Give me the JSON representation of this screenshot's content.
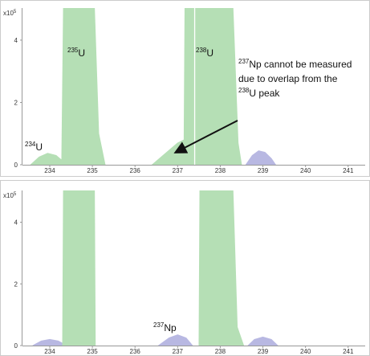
{
  "chart_data": [
    {
      "type": "area",
      "y_unit": {
        "base": "x10",
        "exp": "5"
      },
      "xlim": [
        233.36,
        241.4
      ],
      "xticks": [
        234,
        235,
        236,
        237,
        238,
        239,
        240,
        241
      ],
      "ylim": [
        0,
        5.03
      ],
      "yticks": [
        0,
        2,
        4
      ],
      "grid": false,
      "series": [
        {
          "color": "#b5dfb5",
          "x": [
            233.55,
            233.75,
            233.95,
            234.15,
            234.28,
            234.32,
            235.05,
            235.15,
            235.3
          ],
          "values": [
            0,
            0.25,
            0.37,
            0.3,
            0.15,
            5.03,
            5.03,
            1.0,
            0
          ]
        },
        {
          "color": "#b5dfb5",
          "x": [
            236.4,
            236.7,
            237.0,
            237.15,
            237.17,
            237.38,
            237.38
          ],
          "values": [
            0,
            0.35,
            0.7,
            0.8,
            5.03,
            5.03,
            0.8
          ]
        },
        {
          "color": "#b5dfb5",
          "x": [
            237.42,
            237.42,
            238.3,
            238.42,
            238.5
          ],
          "values": [
            0.8,
            5.03,
            5.03,
            0.7,
            0
          ]
        },
        {
          "color": "#b8b8e2",
          "x": [
            238.6,
            238.75,
            238.9,
            239.05,
            239.2,
            239.3
          ],
          "values": [
            0,
            0.3,
            0.45,
            0.4,
            0.2,
            0
          ]
        }
      ],
      "annotations": [
        {
          "sup": "235",
          "text": "U"
        },
        {
          "sup": "238",
          "text": "U"
        },
        {
          "sup": "234",
          "text": "U"
        },
        {
          "lines": [
            {
              "sup": "237",
              "text": "Np cannot be measured"
            },
            {
              "text": "due to overlap from the"
            },
            {
              "sup": "238",
              "text": "U peak"
            }
          ]
        }
      ]
    },
    {
      "type": "area",
      "y_unit": {
        "base": "x10",
        "exp": "5"
      },
      "xlim": [
        233.36,
        241.4
      ],
      "xticks": [
        234,
        235,
        236,
        237,
        238,
        239,
        240,
        241
      ],
      "ylim": [
        0,
        5.03
      ],
      "yticks": [
        0,
        2,
        4
      ],
      "grid": false,
      "series": [
        {
          "color": "#b8b8e2",
          "x": [
            233.6,
            233.8,
            234.0,
            234.2,
            234.4
          ],
          "values": [
            0,
            0.15,
            0.2,
            0.15,
            0
          ]
        },
        {
          "color": "#b5dfb5",
          "x": [
            234.3,
            234.32,
            235.05,
            235.07
          ],
          "values": [
            0,
            5.03,
            5.03,
            0
          ]
        },
        {
          "color": "#b8b8e2",
          "x": [
            236.55,
            236.8,
            237.0,
            237.2,
            237.35
          ],
          "values": [
            0,
            0.25,
            0.35,
            0.25,
            0
          ]
        },
        {
          "color": "#b5dfb5",
          "x": [
            237.5,
            237.52,
            238.3,
            238.4,
            238.55
          ],
          "values": [
            0,
            5.03,
            5.03,
            0.6,
            0
          ]
        },
        {
          "color": "#b8b8e2",
          "x": [
            238.65,
            238.8,
            239.0,
            239.2,
            239.35
          ],
          "values": [
            0,
            0.2,
            0.28,
            0.2,
            0
          ]
        }
      ],
      "annotations": [
        {
          "sup": "237",
          "text": "Np"
        }
      ]
    }
  ]
}
